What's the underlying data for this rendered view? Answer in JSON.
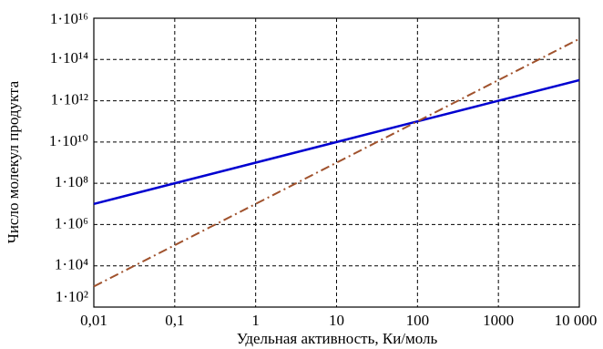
{
  "chart_data": {
    "type": "line",
    "xlabel": "Удельная активность, Ки/моль",
    "ylabel": "Число молекул продукта",
    "x": [
      0.01,
      0.1,
      1,
      10,
      100,
      1000,
      10000
    ],
    "series": [
      {
        "color": "#0000d0",
        "dash": "solid",
        "values": [
          10000000,
          100000000,
          1000000000,
          10000000000,
          100000000000,
          1000000000000,
          10000000000000
        ]
      },
      {
        "color": "#a0522d",
        "dash": "dashdot",
        "values": [
          1000,
          100000,
          10000000,
          1000000000,
          100000000000,
          10000000000000,
          1000000000000000
        ]
      }
    ],
    "xscale": "log",
    "yscale": "log",
    "xlim": [
      0.01,
      10000
    ],
    "ylim": [
      100,
      10000000000000000
    ],
    "xticks": [
      {
        "value": 0.01,
        "label": "0,01"
      },
      {
        "value": 0.1,
        "label": "0,1"
      },
      1,
      10,
      100,
      1000,
      {
        "value": 10000,
        "label": "10 000"
      }
    ],
    "yticks": [
      {
        "value": 100,
        "label": "1·10²"
      },
      {
        "value": 10000,
        "label": "1·10⁴"
      },
      {
        "value": 1000000,
        "label": "1·10⁶"
      },
      {
        "value": 100000000,
        "label": "1·10⁸"
      },
      {
        "value": 10000000000,
        "label": "1·10¹⁰"
      },
      {
        "value": 1000000000000,
        "label": "1·10¹²"
      },
      {
        "value": 100000000000000,
        "label": "1·10¹⁴"
      },
      {
        "value": 10000000000000000,
        "label": "1·10¹⁶"
      }
    ],
    "grid": true
  }
}
